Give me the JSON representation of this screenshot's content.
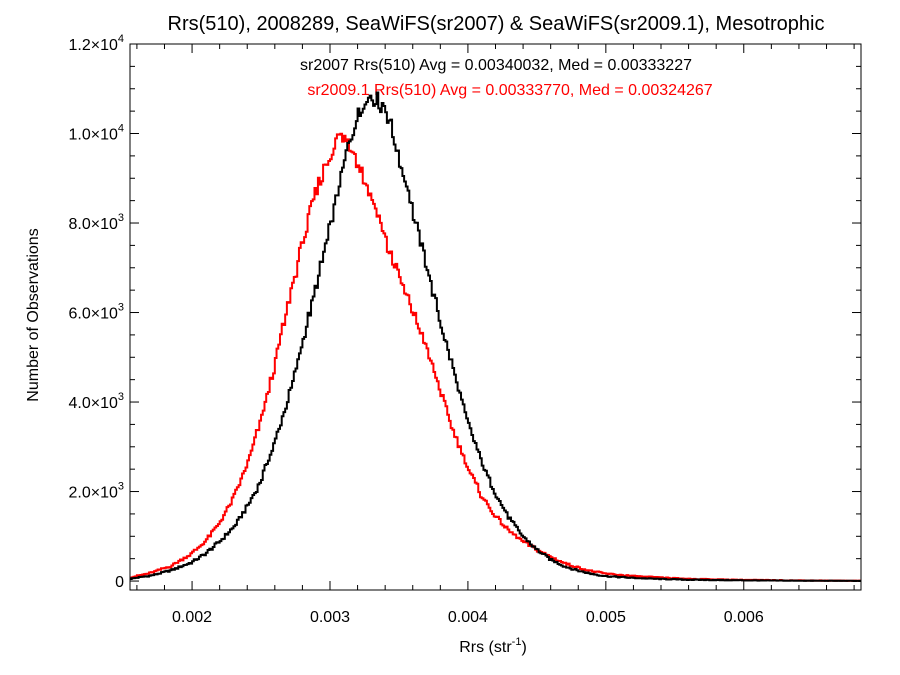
{
  "chart_data": {
    "type": "line",
    "title": "Rrs(510), 2008289, SeaWiFS(sr2007) & SeaWiFS(sr2009.1), Mesotrophic",
    "xlabel": "Rrs (str",
    "xlabel_sup": "-1",
    "xlabel_close": ")",
    "ylabel": "Number of Observations",
    "xlim": [
      0.00155,
      0.00685
    ],
    "ylim": [
      -200,
      12000
    ],
    "grid": false,
    "x_ticks": [
      {
        "value": 0.002,
        "label": "0.002"
      },
      {
        "value": 0.003,
        "label": "0.003"
      },
      {
        "value": 0.004,
        "label": "0.004"
      },
      {
        "value": 0.005,
        "label": "0.005"
      },
      {
        "value": 0.006,
        "label": "0.006"
      }
    ],
    "y_ticks": [
      {
        "value": 0,
        "label": "0",
        "exp": ""
      },
      {
        "value": 2000,
        "label": "2.0×10",
        "exp": "3"
      },
      {
        "value": 4000,
        "label": "4.0×10",
        "exp": "3"
      },
      {
        "value": 6000,
        "label": "6.0×10",
        "exp": "3"
      },
      {
        "value": 8000,
        "label": "8.0×10",
        "exp": "3"
      },
      {
        "value": 10000,
        "label": "1.0×10",
        "exp": "4"
      },
      {
        "value": 12000,
        "label": "1.2×10",
        "exp": "4"
      }
    ],
    "annotations": [
      {
        "text": "sr2007 Rrs(510) Avg = 0.00340032, Med = 0.00333227",
        "color": "#000000"
      },
      {
        "text": "sr2009.1 Rrs(510) Avg = 0.00333770, Med = 0.00324267",
        "color": "#ff0000"
      }
    ],
    "series": [
      {
        "color": "#000000",
        "x": [
          0.00155,
          0.0017,
          0.00185,
          0.002,
          0.0021,
          0.0022,
          0.0023,
          0.0024,
          0.0025,
          0.0026,
          0.0027,
          0.0028,
          0.0029,
          0.003,
          0.00305,
          0.0031,
          0.00315,
          0.0032,
          0.00325,
          0.0033,
          0.00335,
          0.0034,
          0.00345,
          0.0035,
          0.00355,
          0.0036,
          0.0037,
          0.0038,
          0.0039,
          0.004,
          0.0041,
          0.0042,
          0.0043,
          0.0044,
          0.0045,
          0.0046,
          0.0047,
          0.0048,
          0.0049,
          0.005,
          0.0052,
          0.0054,
          0.0056,
          0.0058,
          0.006,
          0.0062,
          0.0064,
          0.0066,
          0.00685
        ],
        "y": [
          50,
          120,
          240,
          420,
          620,
          880,
          1200,
          1650,
          2250,
          3100,
          4100,
          5300,
          6600,
          7900,
          8650,
          9300,
          9900,
          10400,
          10700,
          10850,
          10750,
          10500,
          10050,
          9450,
          8900,
          8300,
          7050,
          5800,
          4650,
          3550,
          2650,
          1950,
          1400,
          1000,
          700,
          480,
          330,
          230,
          160,
          110,
          70,
          45,
          30,
          22,
          16,
          11,
          8,
          6,
          4
        ]
      },
      {
        "color": "#ff0000",
        "x": [
          0.00155,
          0.0017,
          0.00185,
          0.002,
          0.0021,
          0.0022,
          0.0023,
          0.0024,
          0.0025,
          0.0026,
          0.0027,
          0.0028,
          0.0029,
          0.003,
          0.00305,
          0.0031,
          0.00315,
          0.0032,
          0.00325,
          0.0033,
          0.00335,
          0.0034,
          0.0035,
          0.0036,
          0.0037,
          0.0038,
          0.0039,
          0.004,
          0.0041,
          0.0042,
          0.0043,
          0.0044,
          0.0045,
          0.0046,
          0.0047,
          0.0048,
          0.0049,
          0.005,
          0.0052,
          0.0054,
          0.0056,
          0.0058,
          0.006,
          0.0062,
          0.0064,
          0.0066,
          0.00685
        ],
        "y": [
          80,
          180,
          340,
          620,
          900,
          1300,
          1850,
          2600,
          3600,
          4850,
          6200,
          7550,
          8700,
          9550,
          9850,
          9950,
          9700,
          9400,
          9000,
          8600,
          8150,
          7650,
          6800,
          6050,
          5200,
          4250,
          3300,
          2550,
          1900,
          1450,
          1120,
          880,
          700,
          540,
          400,
          300,
          220,
          165,
          110,
          75,
          50,
          36,
          26,
          19,
          14,
          10,
          7
        ]
      }
    ]
  }
}
